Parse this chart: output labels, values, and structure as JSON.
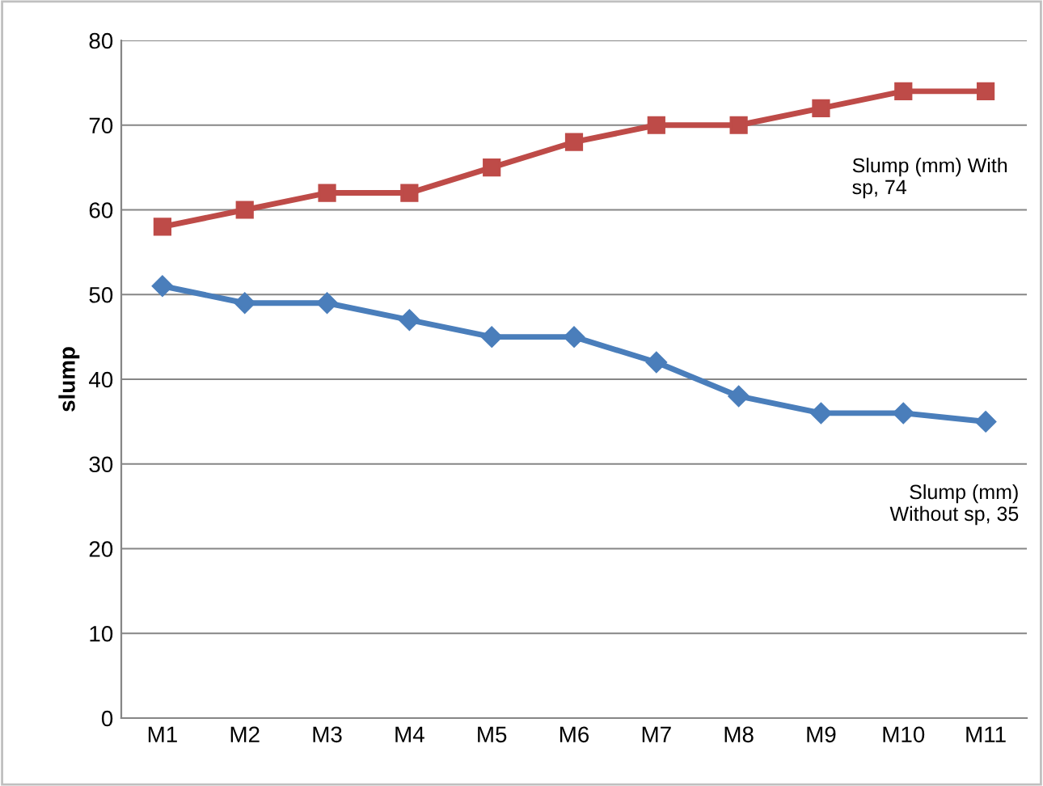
{
  "chart_data": {
    "type": "line",
    "ylabel": "slump",
    "categories": [
      "M1",
      "M2",
      "M3",
      "M4",
      "M5",
      "M6",
      "M7",
      "M8",
      "M9",
      "M10",
      "M11"
    ],
    "series": [
      {
        "color": "#be4b48",
        "marker": "square",
        "values": [
          58,
          60,
          62,
          62,
          65,
          68,
          70,
          70,
          72,
          74,
          74
        ]
      },
      {
        "color": "#4a7ebb",
        "marker": "diamond",
        "values": [
          51,
          49,
          49,
          47,
          45,
          45,
          42,
          38,
          36,
          36,
          35
        ]
      }
    ],
    "annotations": [
      "Slump (mm) With sp, 74",
      "Slump (mm) Without sp, 35"
    ],
    "ylim": [
      0,
      80
    ],
    "yticks": [
      0,
      10,
      20,
      30,
      40,
      50,
      60,
      70,
      80
    ],
    "grid": "y",
    "legend": false
  }
}
